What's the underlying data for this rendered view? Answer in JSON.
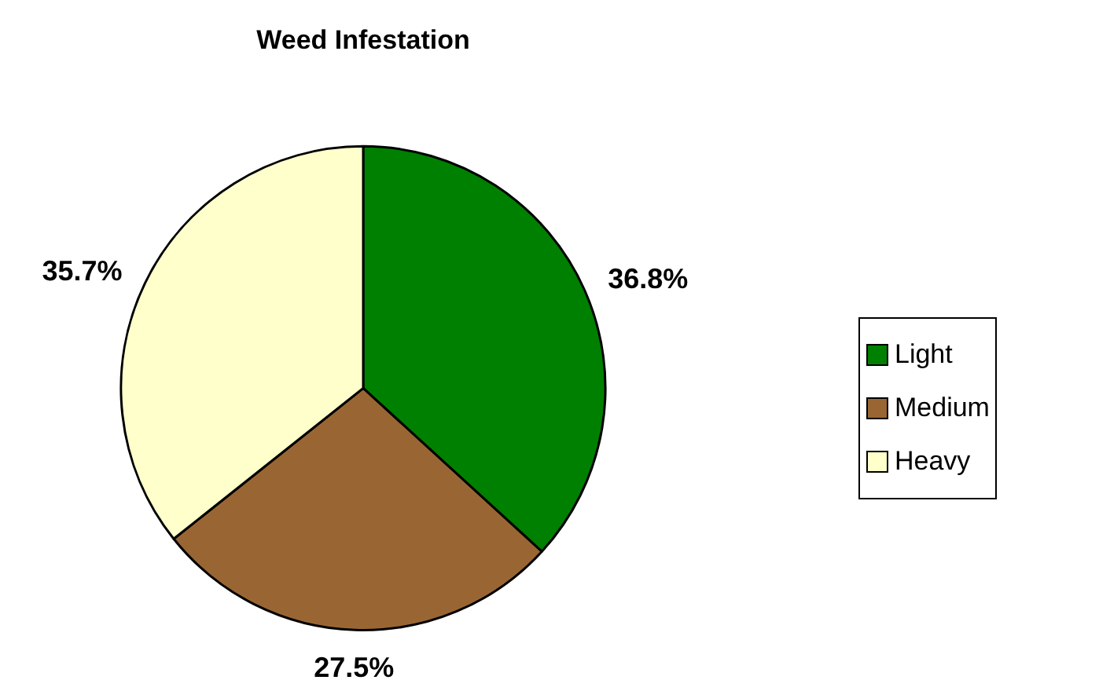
{
  "chart_data": {
    "type": "pie",
    "title": "Weed Infestation",
    "categories": [
      "Light",
      "Medium",
      "Heavy"
    ],
    "values": [
      36.8,
      27.5,
      35.7
    ],
    "value_labels": [
      "36.8%",
      "27.5%",
      "35.7%"
    ],
    "colors": [
      "#008000",
      "#996633",
      "#ffffcc"
    ],
    "legend": "right"
  }
}
